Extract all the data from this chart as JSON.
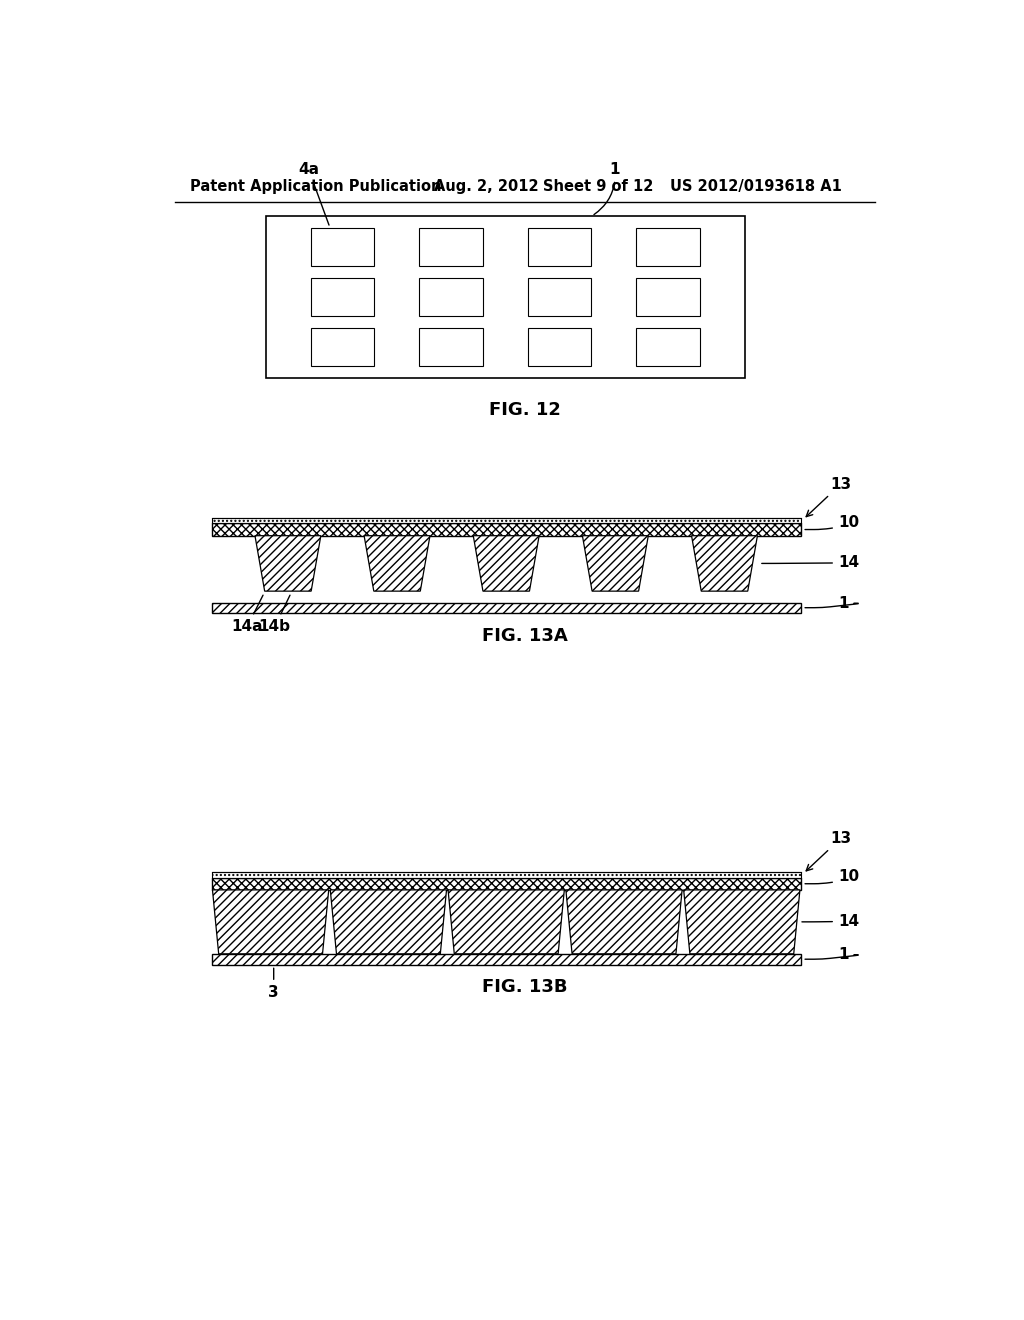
{
  "bg_color": "#ffffff",
  "header_text": "Patent Application Publication",
  "header_date": "Aug. 2, 2012",
  "header_sheet": "Sheet 9 of 12",
  "header_patent": "US 2012/0193618 A1",
  "fig12_caption": "FIG. 12",
  "fig13a_caption": "FIG. 13A",
  "fig13b_caption": "FIG. 13B",
  "line_color": "#000000"
}
